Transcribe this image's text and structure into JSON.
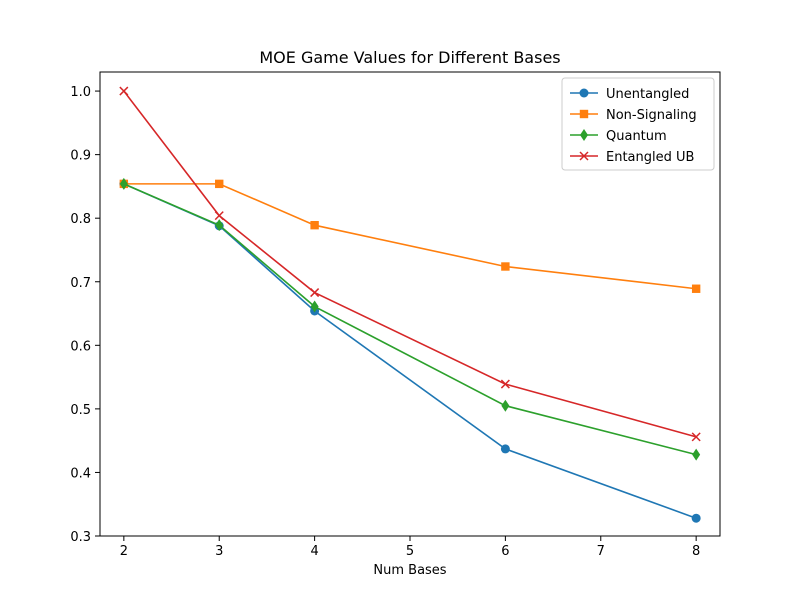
{
  "chart_data": {
    "type": "line",
    "title": "MOE Game Values for Different Bases",
    "xlabel": "Num Bases",
    "ylabel": "",
    "x": [
      2,
      3,
      4,
      6,
      8
    ],
    "xlim": [
      1.75,
      8.25
    ],
    "ylim": [
      0.3,
      1.03
    ],
    "xticks": [
      2,
      3,
      4,
      5,
      6,
      7,
      8
    ],
    "yticks": [
      0.3,
      0.4,
      0.5,
      0.6,
      0.7,
      0.8,
      0.9,
      1.0
    ],
    "ytick_labels": [
      "0.3",
      "0.4",
      "0.5",
      "0.6",
      "0.7",
      "0.8",
      "0.9",
      "1.0"
    ],
    "grid": false,
    "legend_position": "top-right",
    "series": [
      {
        "name": "Unentangled",
        "color": "#1f77b4",
        "marker": "circle",
        "values": [
          0.854,
          0.788,
          0.654,
          0.437,
          0.328
        ]
      },
      {
        "name": "Non-Signaling",
        "color": "#ff7f0e",
        "marker": "square",
        "values": [
          0.854,
          0.854,
          0.789,
          0.724,
          0.689
        ]
      },
      {
        "name": "Quantum",
        "color": "#2ca02c",
        "marker": "diamond",
        "values": [
          0.854,
          0.789,
          0.661,
          0.505,
          0.428
        ]
      },
      {
        "name": "Entangled UB",
        "color": "#d62728",
        "marker": "x",
        "values": [
          1.0,
          0.804,
          0.683,
          0.539,
          0.456
        ]
      }
    ]
  }
}
